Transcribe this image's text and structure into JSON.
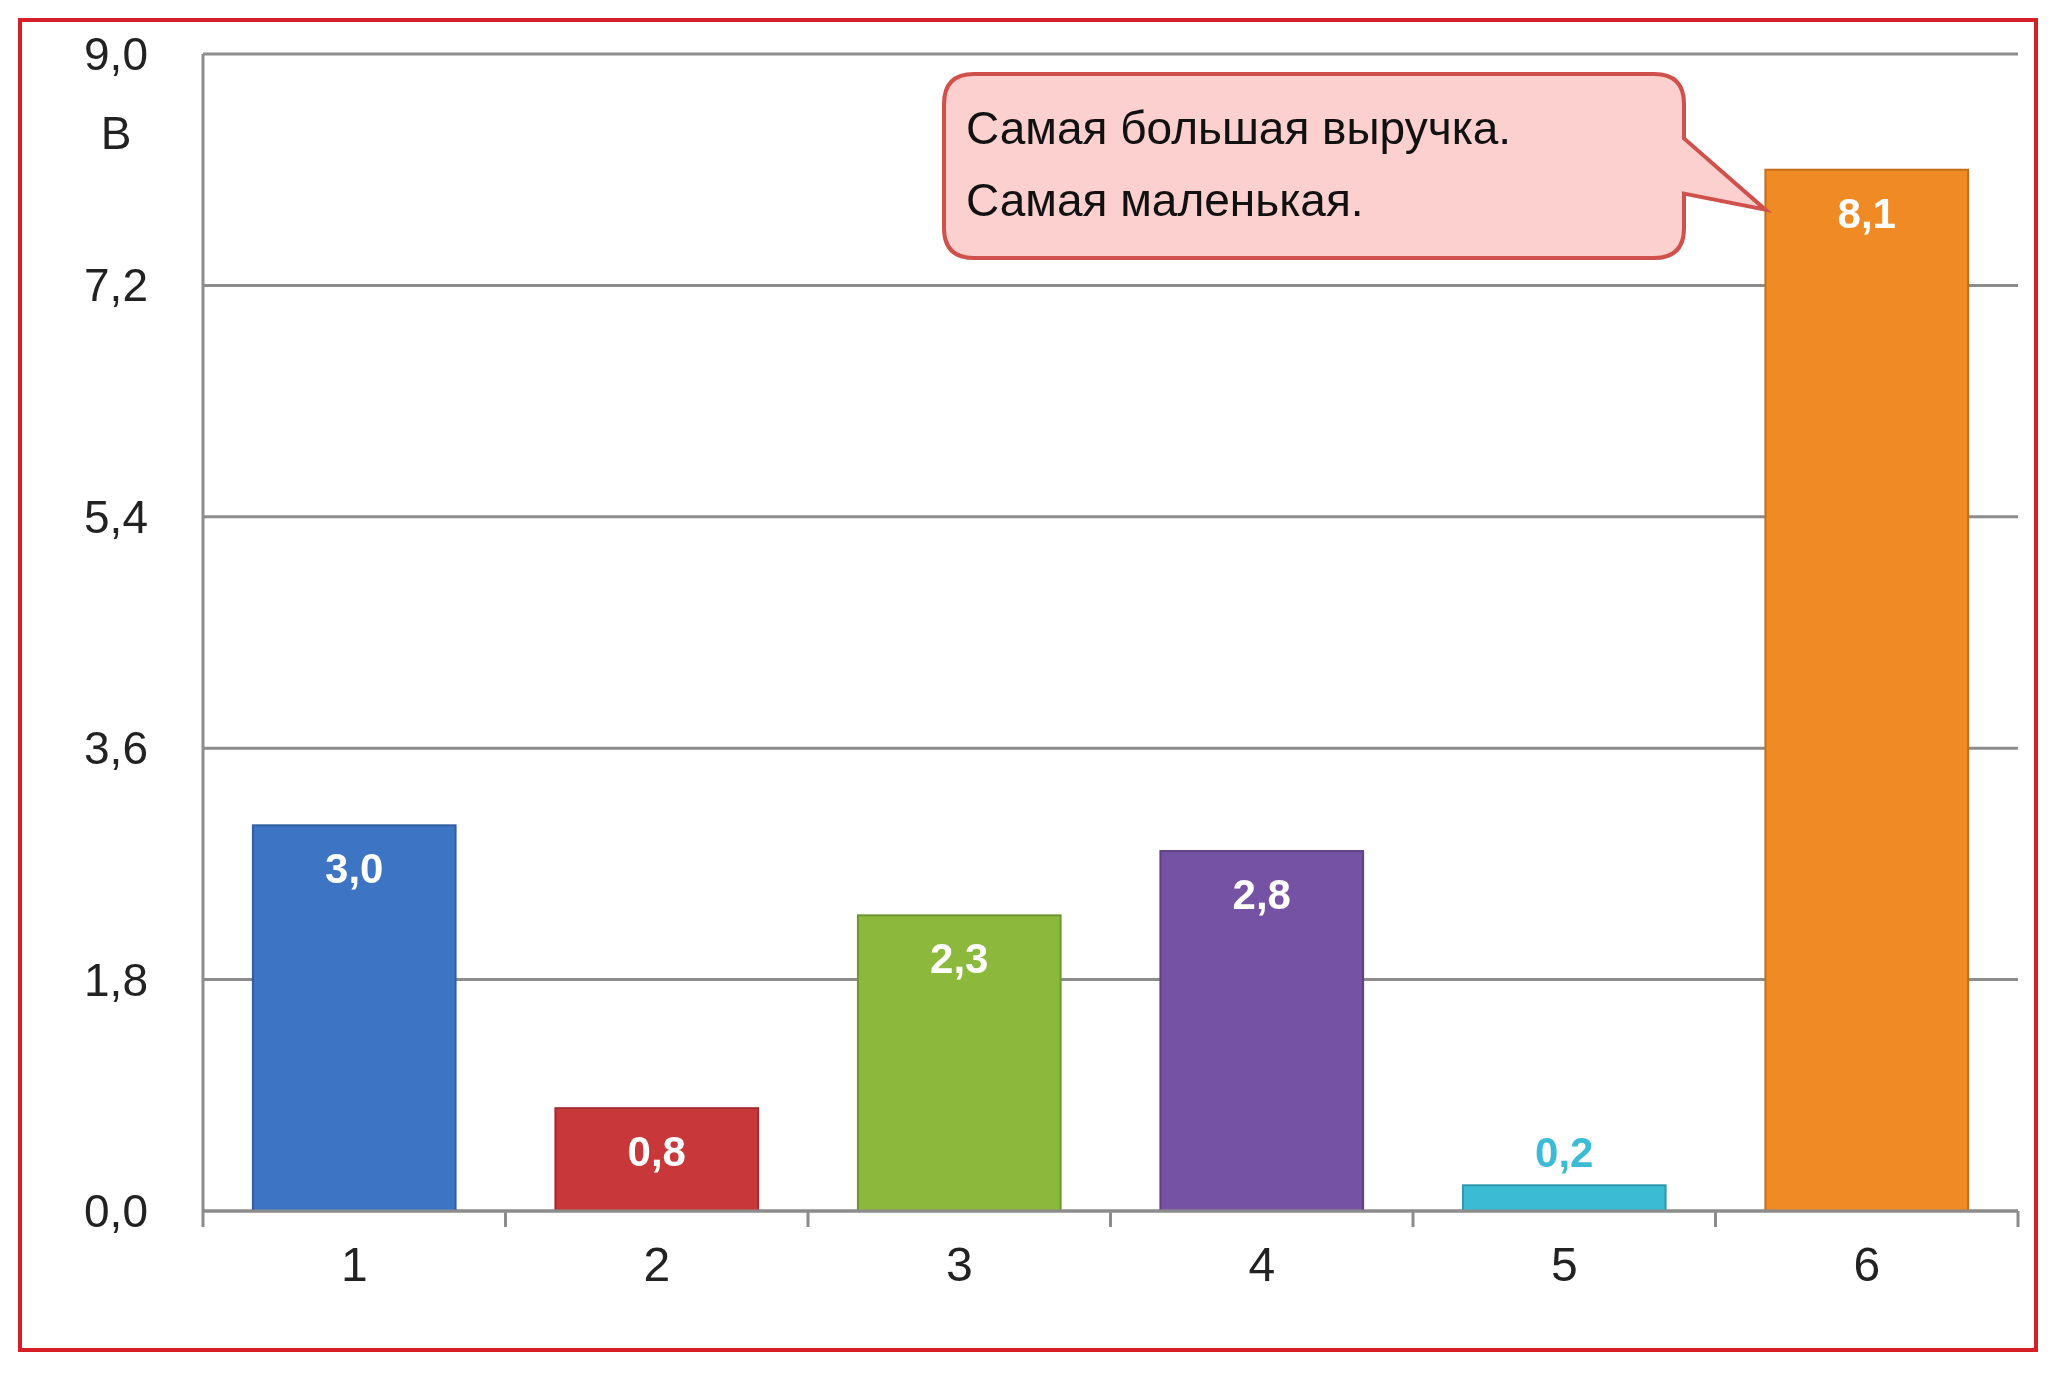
{
  "chart_data": {
    "type": "bar",
    "ylabel": "В",
    "categories": [
      "1",
      "2",
      "3",
      "4",
      "5",
      "6"
    ],
    "values": [
      3.0,
      0.8,
      2.3,
      2.8,
      0.2,
      8.1
    ],
    "colors": [
      "#3d74c4",
      "#c8383a",
      "#8cb83c",
      "#7552a3",
      "#3cbcd4",
      "#f08a24"
    ],
    "value_labels": [
      "3,0",
      "0,8",
      "2,3",
      "2,8",
      "0,2",
      "8,1"
    ],
    "ylim": [
      0,
      9
    ],
    "yticks": [
      {
        "value": 0,
        "label": "0,0"
      },
      {
        "value": 1.8,
        "label": "1,8"
      },
      {
        "value": 3.6,
        "label": "3,6"
      },
      {
        "value": 5.4,
        "label": "5,4"
      },
      {
        "value": 7.2,
        "label": "7,2"
      },
      {
        "value": 9,
        "label": "9,0"
      }
    ],
    "grid": "y",
    "annotations": [
      "Самая большая выручка. Самая маленькая."
    ]
  }
}
